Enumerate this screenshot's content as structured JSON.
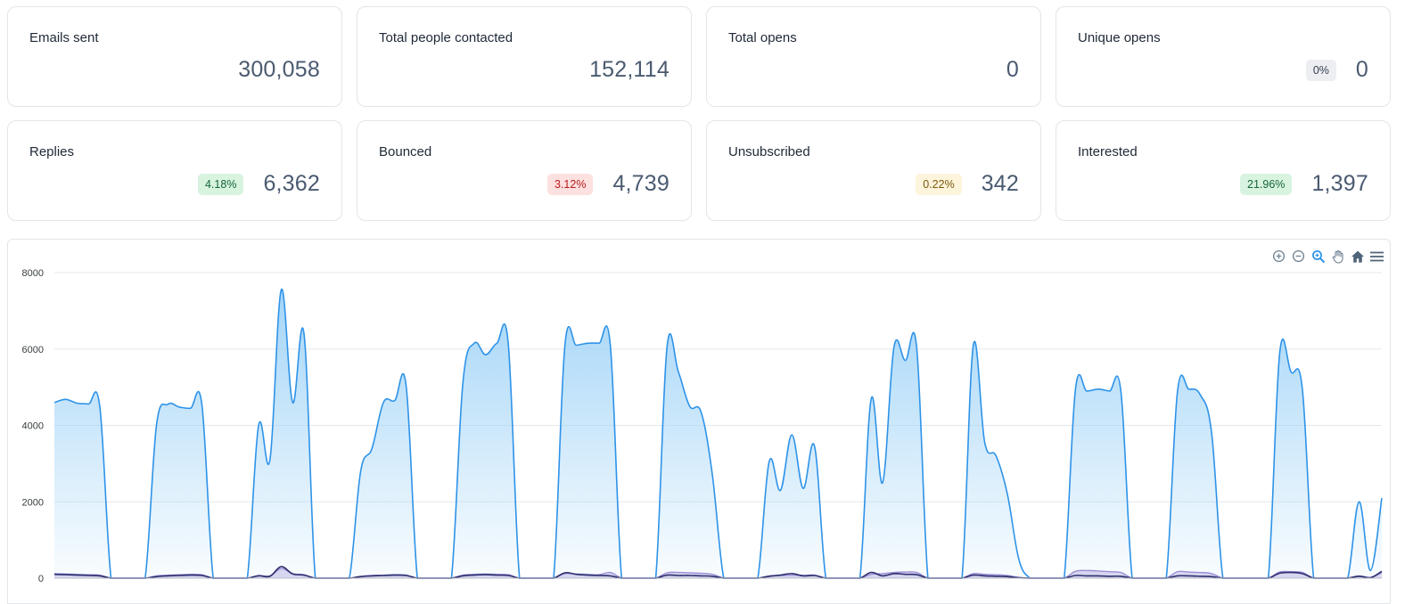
{
  "stats": [
    {
      "title": "Emails sent",
      "value": "300,058",
      "badge": "",
      "badge_type": ""
    },
    {
      "title": "Total people contacted",
      "value": "152,114",
      "badge": "",
      "badge_type": ""
    },
    {
      "title": "Total opens",
      "value": "0",
      "badge": "",
      "badge_type": ""
    },
    {
      "title": "Unique opens",
      "value": "0",
      "badge": "0%",
      "badge_type": "neutral"
    },
    {
      "title": "Replies",
      "value": "6,362",
      "badge": "4.18%",
      "badge_type": "green"
    },
    {
      "title": "Bounced",
      "value": "4,739",
      "badge": "3.12%",
      "badge_type": "red"
    },
    {
      "title": "Unsubscribed",
      "value": "342",
      "badge": "0.22%",
      "badge_type": "yellow"
    },
    {
      "title": "Interested",
      "value": "1,397",
      "badge": "21.96%",
      "badge_type": "green"
    }
  ],
  "toolbar": {
    "icons": [
      "zoom-in-icon",
      "zoom-out-icon",
      "selection-zoom-icon",
      "pan-hand-icon",
      "reset-home-icon",
      "menu-icon"
    ]
  },
  "colors": {
    "primary_series": "#2e93e8",
    "primary_fill_top": "#9fd3f7",
    "purple_series": "#9b8fd6",
    "navy_series": "#2c2f6e",
    "grid": "#e5e7eb"
  },
  "chart_data": {
    "type": "area",
    "ylim": [
      0,
      8000
    ],
    "yticks": [
      "0",
      "2000",
      "4000",
      "6000",
      "8000"
    ],
    "series": [
      {
        "values": [
          4600,
          4680,
          4580,
          4560,
          4500,
          0,
          0,
          0,
          0,
          4000,
          4550,
          4480,
          4450,
          4550,
          0,
          0,
          0,
          0,
          4000,
          3100,
          7550,
          4600,
          6400,
          0,
          0,
          0,
          0,
          2800,
          3400,
          4600,
          4650,
          5050,
          0,
          0,
          0,
          0,
          5100,
          6150,
          5850,
          6150,
          6150,
          0,
          0,
          0,
          0,
          6100,
          6100,
          6150,
          6150,
          6100,
          0,
          0,
          0,
          0,
          6050,
          5400,
          4500,
          4350,
          2700,
          0,
          0,
          0,
          0,
          3050,
          2300,
          3750,
          2350,
          3450,
          0,
          0,
          0,
          0,
          4700,
          2500,
          6050,
          5700,
          6050,
          0,
          0,
          0,
          0,
          6100,
          3550,
          3200,
          2200,
          500,
          0,
          0,
          0,
          0,
          4950,
          4900,
          4950,
          4900,
          4900,
          0,
          0,
          0,
          0,
          4900,
          4950,
          4800,
          3800,
          0,
          0,
          0,
          0,
          0,
          5900,
          5400,
          4950,
          0,
          0,
          0,
          0,
          2000,
          200,
          2100
        ]
      },
      {
        "values": [
          120,
          110,
          100,
          90,
          80,
          0,
          0,
          0,
          0,
          60,
          80,
          90,
          100,
          90,
          0,
          0,
          0,
          0,
          70,
          60,
          250,
          120,
          90,
          0,
          0,
          0,
          0,
          50,
          70,
          80,
          90,
          80,
          0,
          0,
          0,
          0,
          80,
          100,
          110,
          100,
          90,
          0,
          0,
          0,
          0,
          120,
          110,
          100,
          90,
          150,
          0,
          0,
          0,
          0,
          140,
          150,
          140,
          130,
          100,
          0,
          0,
          0,
          0,
          60,
          70,
          80,
          70,
          80,
          0,
          0,
          0,
          0,
          100,
          120,
          150,
          160,
          150,
          0,
          0,
          0,
          0,
          120,
          100,
          90,
          70,
          20,
          0,
          0,
          0,
          0,
          180,
          200,
          190,
          170,
          150,
          0,
          0,
          0,
          0,
          170,
          160,
          150,
          120,
          0,
          0,
          0,
          0,
          0,
          160,
          170,
          150,
          0,
          0,
          0,
          0,
          60,
          20,
          150
        ]
      },
      {
        "values": [
          100,
          90,
          80,
          70,
          60,
          0,
          0,
          0,
          0,
          40,
          60,
          70,
          80,
          70,
          0,
          0,
          0,
          0,
          60,
          50,
          300,
          110,
          80,
          0,
          0,
          0,
          0,
          40,
          60,
          70,
          80,
          70,
          0,
          0,
          0,
          0,
          60,
          80,
          90,
          80,
          70,
          0,
          0,
          0,
          0,
          140,
          100,
          80,
          70,
          60,
          0,
          0,
          0,
          0,
          80,
          70,
          70,
          60,
          50,
          0,
          0,
          0,
          0,
          50,
          80,
          120,
          60,
          70,
          0,
          0,
          0,
          0,
          150,
          60,
          120,
          100,
          90,
          0,
          0,
          0,
          0,
          80,
          60,
          50,
          40,
          10,
          0,
          0,
          0,
          0,
          70,
          60,
          60,
          50,
          50,
          0,
          0,
          0,
          0,
          60,
          60,
          50,
          40,
          0,
          0,
          0,
          0,
          0,
          130,
          150,
          120,
          0,
          0,
          0,
          0,
          50,
          10,
          180
        ]
      }
    ]
  }
}
